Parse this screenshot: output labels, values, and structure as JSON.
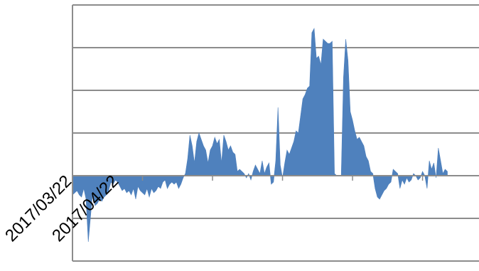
{
  "chart_data": {
    "type": "area",
    "title": "",
    "xlabel": "",
    "ylabel": "",
    "x_tick_labels": [
      "2017/03/22",
      "2017/04/22"
    ],
    "x_range": [
      0,
      180
    ],
    "ylim": [
      -2,
      4
    ],
    "y_gridlines": [
      -2,
      -1,
      0,
      1,
      2,
      3,
      4
    ],
    "grid": true,
    "legend": "none",
    "colors": {
      "fill": "#4f81bd",
      "grid": "#8c8c8c"
    },
    "series": [
      {
        "values": [
          [
            0,
            -0.45
          ],
          [
            1,
            -0.4
          ],
          [
            2,
            -0.35
          ],
          [
            3,
            -0.45
          ],
          [
            4,
            -0.5
          ],
          [
            5,
            -0.3
          ],
          [
            6,
            -0.55
          ],
          [
            7,
            -1.55
          ],
          [
            8,
            -0.95
          ],
          [
            9,
            -0.35
          ],
          [
            10,
            -0.7
          ],
          [
            11,
            -0.65
          ],
          [
            12,
            -0.55
          ],
          [
            13,
            -0.6
          ],
          [
            14,
            -0.5
          ],
          [
            15,
            -0.45
          ],
          [
            16,
            -0.35
          ],
          [
            17,
            -0.15
          ],
          [
            18,
            -0.2
          ],
          [
            19,
            -0.1
          ],
          [
            20,
            -0.15
          ],
          [
            21,
            -0.25
          ],
          [
            22,
            -0.35
          ],
          [
            23,
            -0.3
          ],
          [
            24,
            -0.4
          ],
          [
            25,
            -0.35
          ],
          [
            26,
            -0.45
          ],
          [
            27,
            -0.3
          ],
          [
            28,
            -0.55
          ],
          [
            29,
            -0.25
          ],
          [
            30,
            -0.35
          ],
          [
            31,
            -0.4
          ],
          [
            32,
            -0.45
          ],
          [
            33,
            -0.3
          ],
          [
            34,
            -0.5
          ],
          [
            35,
            -0.3
          ],
          [
            36,
            -0.4
          ],
          [
            37,
            -0.35
          ],
          [
            38,
            -0.25
          ],
          [
            39,
            -0.3
          ],
          [
            40,
            -0.15
          ],
          [
            41,
            -0.1
          ],
          [
            42,
            -0.3
          ],
          [
            43,
            -0.2
          ],
          [
            44,
            -0.15
          ],
          [
            45,
            -0.2
          ],
          [
            46,
            -0.15
          ],
          [
            47,
            -0.3
          ],
          [
            48,
            -0.2
          ],
          [
            49,
            -0.05
          ],
          [
            50,
            0.05
          ],
          [
            51,
            0.4
          ],
          [
            52,
            0.95
          ],
          [
            53,
            0.7
          ],
          [
            54,
            0.3
          ],
          [
            55,
            0.8
          ],
          [
            56,
            1.0
          ],
          [
            57,
            0.85
          ],
          [
            58,
            0.7
          ],
          [
            59,
            0.6
          ],
          [
            60,
            0.3
          ],
          [
            61,
            0.6
          ],
          [
            62,
            0.7
          ],
          [
            63,
            0.9
          ],
          [
            64,
            0.75
          ],
          [
            65,
            0.85
          ],
          [
            66,
            0.3
          ],
          [
            67,
            0.95
          ],
          [
            68,
            0.8
          ],
          [
            69,
            0.6
          ],
          [
            70,
            0.7
          ],
          [
            71,
            0.55
          ],
          [
            72,
            0.5
          ],
          [
            73,
            0.1
          ],
          [
            74,
            0.15
          ],
          [
            75,
            0.1
          ],
          [
            76,
            0.05
          ],
          [
            77,
            -0.05
          ],
          [
            78,
            0.05
          ],
          [
            79,
            -0.1
          ],
          [
            80,
            0.1
          ],
          [
            81,
            0.25
          ],
          [
            82,
            0.15
          ],
          [
            83,
            0.05
          ],
          [
            84,
            0.35
          ],
          [
            85,
            0.05
          ],
          [
            86,
            0.2
          ],
          [
            87,
            0.3
          ],
          [
            88,
            -0.2
          ],
          [
            89,
            -0.15
          ],
          [
            90,
            0.35
          ],
          [
            91,
            1.6
          ],
          [
            92,
            0.25
          ],
          [
            93,
            -0.05
          ],
          [
            94,
            0.3
          ],
          [
            95,
            0.6
          ],
          [
            96,
            0.5
          ],
          [
            97,
            0.65
          ],
          [
            98,
            0.8
          ],
          [
            99,
            1.05
          ],
          [
            100,
            1.0
          ],
          [
            101,
            1.4
          ],
          [
            102,
            1.8
          ],
          [
            103,
            1.9
          ],
          [
            104,
            2.05
          ],
          [
            105,
            2.1
          ],
          [
            106,
            3.35
          ],
          [
            107,
            3.45
          ],
          [
            108,
            2.75
          ],
          [
            109,
            2.8
          ],
          [
            110,
            2.6
          ],
          [
            111,
            3.2
          ],
          [
            112,
            3.15
          ],
          [
            113,
            3.1
          ],
          [
            114,
            3.1
          ],
          [
            115,
            3.15
          ],
          [
            116,
            0.05
          ],
          [
            117,
            0.0
          ],
          [
            118,
            0.0
          ],
          [
            119,
            0.0
          ],
          [
            120,
            2.3
          ],
          [
            121,
            3.2
          ],
          [
            122,
            2.7
          ],
          [
            123,
            1.5
          ],
          [
            124,
            1.3
          ],
          [
            125,
            1.05
          ],
          [
            126,
            0.85
          ],
          [
            127,
            0.9
          ],
          [
            128,
            0.8
          ],
          [
            129,
            0.7
          ],
          [
            130,
            0.45
          ],
          [
            131,
            0.35
          ],
          [
            132,
            0.1
          ],
          [
            133,
            0.05
          ],
          [
            134,
            -0.3
          ],
          [
            135,
            -0.5
          ],
          [
            136,
            -0.55
          ],
          [
            137,
            -0.45
          ],
          [
            138,
            -0.35
          ],
          [
            139,
            -0.3
          ],
          [
            140,
            -0.2
          ],
          [
            141,
            -0.15
          ],
          [
            142,
            0.15
          ],
          [
            143,
            0.1
          ],
          [
            144,
            0.05
          ],
          [
            145,
            -0.3
          ],
          [
            146,
            -0.1
          ],
          [
            147,
            -0.2
          ],
          [
            148,
            -0.05
          ],
          [
            149,
            -0.15
          ],
          [
            150,
            -0.1
          ],
          [
            151,
            0.05
          ],
          [
            152,
            0.0
          ],
          [
            153,
            -0.1
          ],
          [
            154,
            -0.05
          ],
          [
            155,
            0.1
          ],
          [
            156,
            0.0
          ],
          [
            157,
            -0.3
          ],
          [
            158,
            0.35
          ],
          [
            159,
            0.15
          ],
          [
            160,
            0.3
          ],
          [
            161,
            -0.05
          ],
          [
            162,
            0.65
          ],
          [
            163,
            0.35
          ],
          [
            164,
            0.05
          ],
          [
            165,
            0.15
          ],
          [
            166,
            0.1
          ]
        ]
      }
    ]
  }
}
